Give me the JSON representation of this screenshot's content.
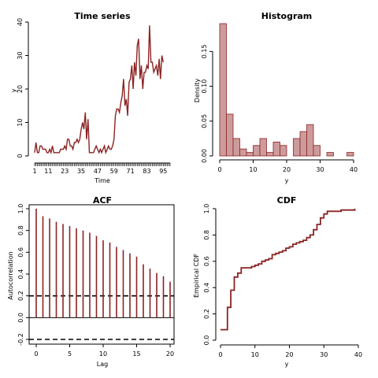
{
  "colors": {
    "line": "#8b2323",
    "bar_fill": "#cd9b9b",
    "bar_stroke": "#8b2323",
    "axis": "#000000"
  },
  "chart_data": [
    {
      "type": "line",
      "title": "Time series",
      "xlabel": "Time",
      "ylabel": "y",
      "xlim": [
        1,
        100
      ],
      "ylim": [
        0,
        40
      ],
      "x_tick_labels": [
        "1",
        "11",
        "23",
        "35",
        "47",
        "59",
        "71",
        "83",
        "95"
      ],
      "x_tick_values": [
        1,
        11,
        23,
        35,
        47,
        59,
        71,
        83,
        95
      ],
      "y_ticks": [
        0,
        10,
        20,
        30,
        40
      ],
      "y": [
        1,
        4,
        1,
        1,
        3,
        3,
        2,
        2,
        2,
        1,
        1,
        2,
        1,
        3,
        1,
        1,
        1,
        1,
        1,
        2,
        2,
        2,
        3,
        2,
        5,
        5,
        3,
        3,
        2,
        4,
        4,
        5,
        4,
        5,
        8,
        10,
        8,
        13,
        5,
        11,
        1,
        1,
        1,
        1,
        2,
        3,
        2,
        1,
        2,
        1,
        2,
        3,
        1,
        2,
        3,
        2,
        2,
        3,
        5,
        12,
        14,
        14,
        13,
        16,
        18,
        23,
        15,
        17,
        12,
        22,
        23,
        27,
        20,
        28,
        24,
        33,
        35,
        23,
        27,
        20,
        25,
        25,
        27,
        26,
        39,
        28,
        28,
        25,
        26,
        27,
        24,
        29,
        23,
        30,
        28
      ],
      "grid": false
    },
    {
      "type": "bar",
      "title": "Histogram",
      "xlabel": "y",
      "ylabel": "Density",
      "bin_width": 2,
      "bin_edges_start": 0,
      "densities": [
        0.19,
        0.06,
        0.025,
        0.01,
        0.005,
        0.015,
        0.025,
        0.005,
        0.02,
        0.015,
        0,
        0.025,
        0.035,
        0.045,
        0.015,
        0,
        0.005,
        0,
        0,
        0.005
      ],
      "xlim": [
        0,
        40
      ],
      "ylim": [
        0,
        0.19
      ],
      "x_ticks": [
        0,
        10,
        20,
        30,
        40
      ],
      "y_ticks": [
        "0.00",
        "0.05",
        "0.10",
        "0.15"
      ],
      "grid": false
    },
    {
      "type": "bar",
      "title": "ACF",
      "xlabel": "Lag",
      "ylabel": "Autocorrelation",
      "lags": [
        0,
        1,
        2,
        3,
        4,
        5,
        6,
        7,
        8,
        9,
        10,
        11,
        12,
        13,
        14,
        15,
        16,
        17,
        18,
        19,
        20
      ],
      "acf": [
        1.0,
        0.93,
        0.91,
        0.88,
        0.86,
        0.84,
        0.82,
        0.8,
        0.78,
        0.75,
        0.71,
        0.69,
        0.65,
        0.62,
        0.59,
        0.56,
        0.49,
        0.45,
        0.41,
        0.38,
        0.33
      ],
      "conf_bounds": [
        0.2,
        -0.2
      ],
      "xlim": [
        0,
        20
      ],
      "ylim": [
        -0.2,
        1.0
      ],
      "x_ticks": [
        0,
        5,
        10,
        15,
        20
      ],
      "y_ticks": [
        "-0.2",
        "0.0",
        "0.2",
        "0.4",
        "0.6",
        "0.8",
        "1.0"
      ],
      "grid": false
    },
    {
      "type": "line",
      "title": "CDF",
      "xlabel": "y",
      "ylabel": "Empirical CDF",
      "x": [
        0,
        1,
        2,
        3,
        4,
        5,
        6,
        7,
        8,
        9,
        10,
        11,
        12,
        13,
        14,
        15,
        16,
        17,
        18,
        19,
        20,
        21,
        22,
        23,
        24,
        25,
        26,
        27,
        28,
        29,
        30,
        31,
        32,
        33,
        34,
        35,
        36,
        37,
        38,
        39
      ],
      "cdf": [
        0.08,
        0.08,
        0.25,
        0.38,
        0.48,
        0.51,
        0.55,
        0.55,
        0.55,
        0.56,
        0.57,
        0.58,
        0.6,
        0.61,
        0.62,
        0.65,
        0.66,
        0.67,
        0.68,
        0.7,
        0.71,
        0.73,
        0.74,
        0.75,
        0.76,
        0.78,
        0.8,
        0.84,
        0.88,
        0.93,
        0.96,
        0.98,
        0.98,
        0.98,
        0.98,
        0.99,
        0.99,
        0.99,
        0.99,
        1.0
      ],
      "xlim": [
        0,
        40
      ],
      "ylim": [
        0,
        1.0
      ],
      "x_ticks": [
        0,
        10,
        20,
        30,
        40
      ],
      "y_ticks": [
        "0.0",
        "0.2",
        "0.4",
        "0.6",
        "0.8",
        "1.0"
      ],
      "grid": false
    }
  ]
}
